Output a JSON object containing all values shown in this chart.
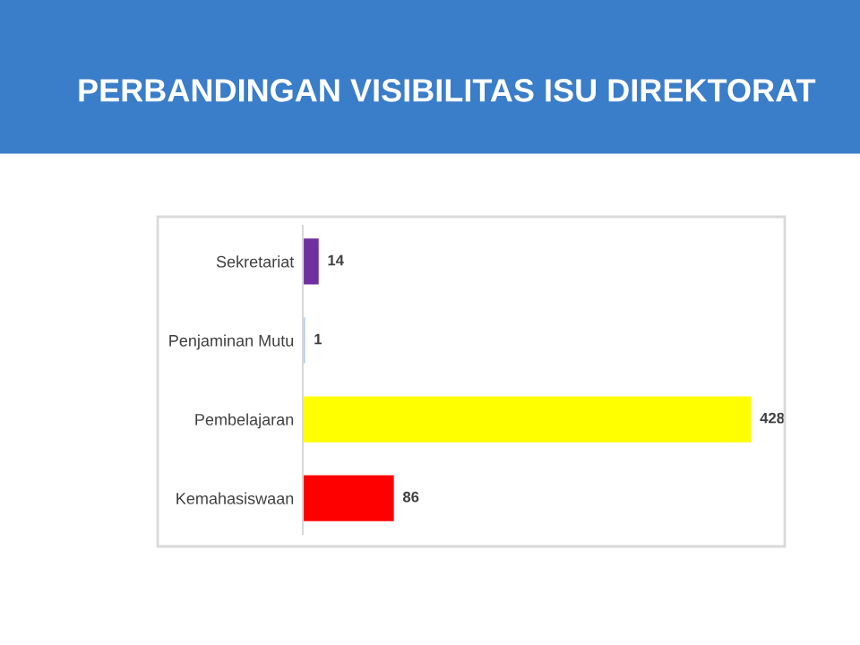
{
  "chart_data": {
    "type": "bar",
    "orientation": "horizontal",
    "title": "PERBANDINGAN VISIBILITAS ISU DIREKTORAT",
    "categories": [
      "Sekretariat",
      "Penjaminan Mutu",
      "Pembelajaran",
      "Kemahasiswaan"
    ],
    "values": [
      14,
      1,
      428,
      86
    ],
    "colors": [
      "#7030a0",
      "#b4c7e7",
      "#ffff00",
      "#ff0000"
    ],
    "tick_labels": "y",
    "data_labels": true,
    "grid": false,
    "legend": false
  }
}
